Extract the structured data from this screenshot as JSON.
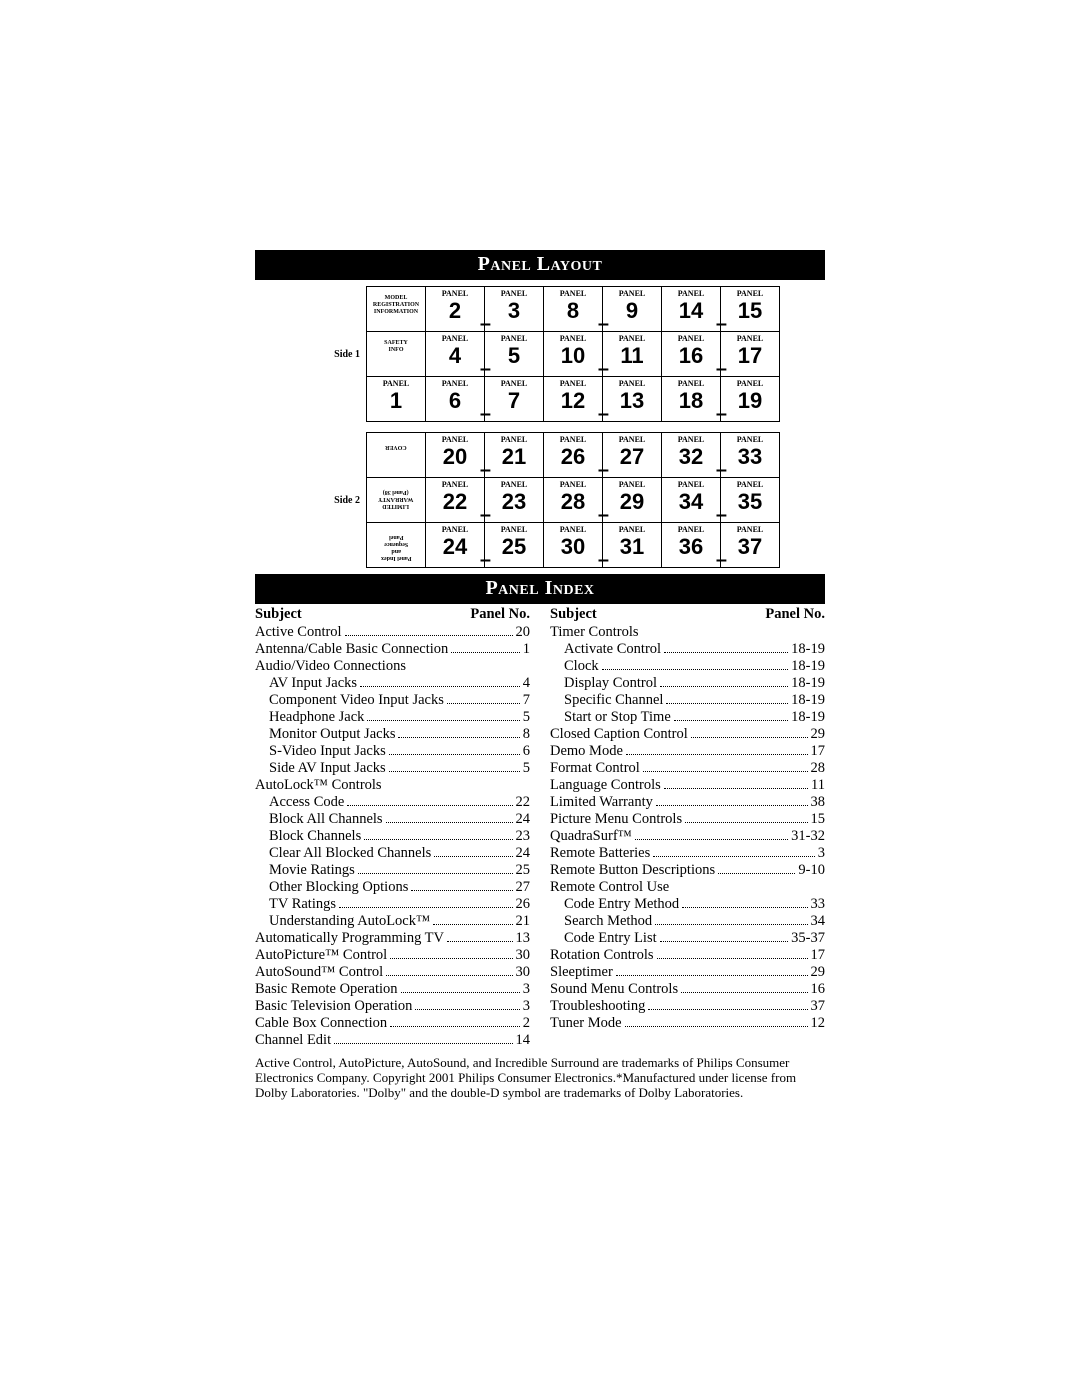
{
  "titles": {
    "panel_layout": "Panel Layout",
    "panel_index": "Panel Index"
  },
  "sides": {
    "side1": "Side 1",
    "side2": "Side 2"
  },
  "panel_word": "PANEL",
  "side1_info_cells": {
    "r0c0": "MODEL\nREGISTRATION\nINFORMATION",
    "r1c0": "SAFETY\nINFO"
  },
  "side1_grid": [
    [
      "",
      "2",
      "3",
      "8",
      "9",
      "14",
      "15"
    ],
    [
      "",
      "4",
      "5",
      "10",
      "11",
      "16",
      "17"
    ],
    [
      "1",
      "6",
      "7",
      "12",
      "13",
      "18",
      "19"
    ]
  ],
  "side2_info_cells": {
    "r0c0": "COVER",
    "r1c0": "LIMITED\nWARRANTY\n(Panel 38)",
    "r2c0": "Panel Index\nand\nSequence\nPanel"
  },
  "side2_grid": [
    [
      "",
      "20",
      "21",
      "26",
      "27",
      "32",
      "33"
    ],
    [
      "",
      "22",
      "23",
      "28",
      "29",
      "34",
      "35"
    ],
    [
      "",
      "24",
      "25",
      "30",
      "31",
      "36",
      "37"
    ]
  ],
  "index_headers": {
    "subject": "Subject",
    "panel_no": "Panel No."
  },
  "index_left": [
    {
      "s": "Active Control",
      "p": "20"
    },
    {
      "s": "Antenna/Cable Basic Connection",
      "p": "1"
    },
    {
      "s": "Audio/Video Connections",
      "p": ""
    },
    {
      "s": "AV Input Jacks",
      "p": "4",
      "i": true
    },
    {
      "s": "Component Video Input Jacks",
      "p": "7",
      "i": true
    },
    {
      "s": "Headphone Jack",
      "p": "5",
      "i": true
    },
    {
      "s": "Monitor Output Jacks",
      "p": "8",
      "i": true
    },
    {
      "s": "S-Video Input Jacks",
      "p": "6",
      "i": true
    },
    {
      "s": "Side AV Input Jacks",
      "p": "5",
      "i": true
    },
    {
      "s": "AutoLock™ Controls",
      "p": ""
    },
    {
      "s": "Access Code",
      "p": "22",
      "i": true
    },
    {
      "s": "Block All Channels",
      "p": "24",
      "i": true
    },
    {
      "s": "Block Channels",
      "p": "23",
      "i": true
    },
    {
      "s": "Clear All Blocked Channels",
      "p": "24",
      "i": true
    },
    {
      "s": "Movie Ratings",
      "p": "25",
      "i": true
    },
    {
      "s": "Other Blocking Options",
      "p": "27",
      "i": true
    },
    {
      "s": "TV Ratings",
      "p": "26",
      "i": true
    },
    {
      "s": "Understanding AutoLock™",
      "p": "21",
      "i": true
    },
    {
      "s": "Automatically Programming TV",
      "p": "13"
    },
    {
      "s": "AutoPicture™ Control",
      "p": "30"
    },
    {
      "s": "AutoSound™ Control",
      "p": "30"
    },
    {
      "s": "Basic Remote Operation",
      "p": "3"
    },
    {
      "s": "Basic Television Operation",
      "p": "3"
    },
    {
      "s": "Cable Box Connection",
      "p": "2"
    },
    {
      "s": "Channel Edit",
      "p": "14"
    }
  ],
  "index_right": [
    {
      "s": "Timer Controls",
      "p": ""
    },
    {
      "s": "Activate Control",
      "p": "18-19",
      "i": true
    },
    {
      "s": "Clock",
      "p": "18-19",
      "i": true
    },
    {
      "s": "Display Control",
      "p": "18-19",
      "i": true
    },
    {
      "s": "Specific Channel",
      "p": "18-19",
      "i": true
    },
    {
      "s": "Start or Stop Time",
      "p": "18-19",
      "i": true
    },
    {
      "s": "Closed Caption Control",
      "p": "29"
    },
    {
      "s": "Demo Mode",
      "p": "17"
    },
    {
      "s": "Format Control",
      "p": "28"
    },
    {
      "s": "Language Controls",
      "p": "11"
    },
    {
      "s": "Limited Warranty",
      "p": "38"
    },
    {
      "s": "Picture Menu Controls",
      "p": "15"
    },
    {
      "s": "QuadraSurf™",
      "p": "31-32"
    },
    {
      "s": "Remote Batteries",
      "p": "3"
    },
    {
      "s": "Remote  Button Descriptions",
      "p": "9-10"
    },
    {
      "s": "Remote Control Use",
      "p": ""
    },
    {
      "s": "Code Entry Method",
      "p": "33",
      "i": true
    },
    {
      "s": "Search Method",
      "p": "34",
      "i": true
    },
    {
      "s": "Code Entry List",
      "p": "35-37",
      "i": true
    },
    {
      "s": "Rotation Controls",
      "p": "17"
    },
    {
      "s": "Sleeptimer",
      "p": "29"
    },
    {
      "s": "Sound Menu Controls",
      "p": "16"
    },
    {
      "s": "Troubleshooting",
      "p": "37"
    },
    {
      "s": "Tuner Mode",
      "p": "12"
    }
  ],
  "footnote": "Active Control, AutoPicture, AutoSound, and Incredible Surround are trademarks of Philips Consumer Electronics Company. Copyright 2001 Philips Consumer Electronics.*Manufactured under license from Dolby Laboratories. \"Dolby\" and the double-D symbol are trademarks of Dolby Laboratories."
}
